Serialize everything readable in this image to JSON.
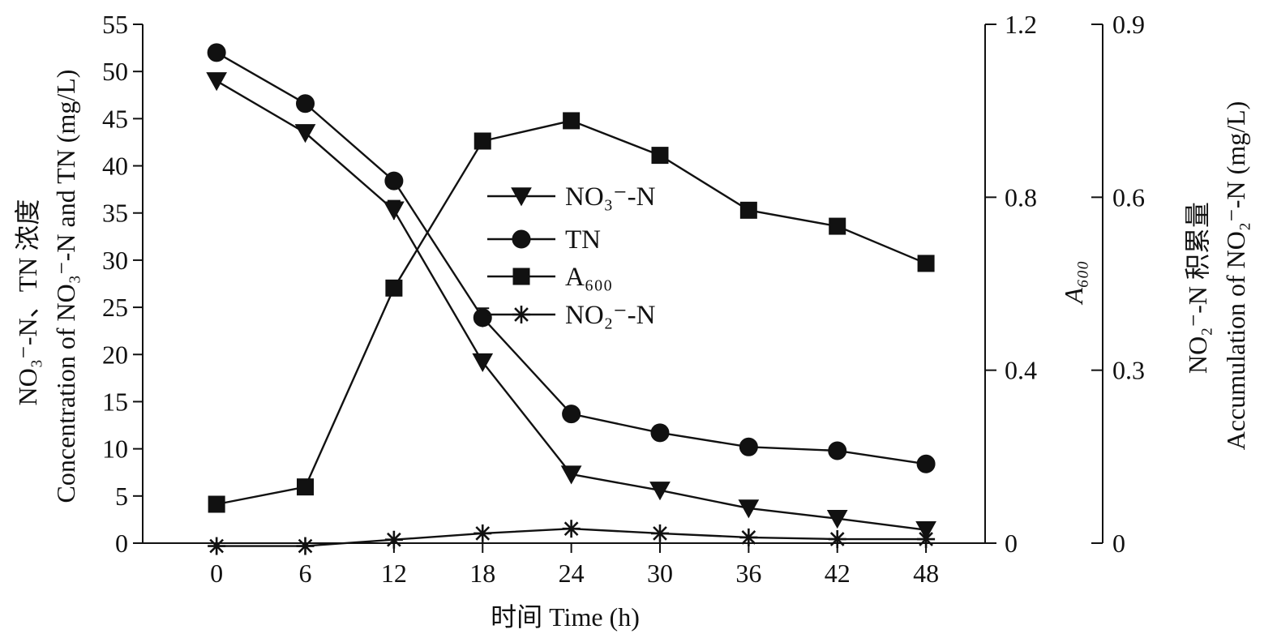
{
  "chart_data": {
    "type": "line",
    "x": [
      0,
      6,
      12,
      18,
      24,
      30,
      36,
      42,
      48
    ],
    "x_ticks": [
      "0",
      "6",
      "12",
      "18",
      "24",
      "30",
      "36",
      "42",
      "48"
    ],
    "xlabel": "时间 Time (h)",
    "xlim": [
      -5,
      52
    ],
    "left_axis": {
      "label_line1": "NO₃⁻-N、TN 浓度",
      "label_line2": "Concentration of NO₃⁻-N and TN (mg/L)",
      "ylim": [
        0,
        55
      ],
      "ticks": [
        "0",
        "5",
        "10",
        "15",
        "20",
        "25",
        "30",
        "35",
        "40",
        "45",
        "50",
        "55"
      ]
    },
    "right_axis_1": {
      "label": "A₆₀₀",
      "ylim": [
        0,
        1.2
      ],
      "ticks": [
        "0",
        "0.4",
        "0.8",
        "1.2"
      ]
    },
    "right_axis_2": {
      "label_line1": "NO₂⁻-N 积累量",
      "label_line2": "Accumulation of NO₂⁻-N (mg/L)",
      "ylim": [
        0,
        0.9
      ],
      "ticks": [
        "0",
        "0.3",
        "0.6",
        "0.9"
      ]
    },
    "series": [
      {
        "name": "NO₃⁻-N",
        "axis": "left",
        "marker": "triangle-down",
        "values": [
          49,
          43.5,
          35.3,
          19.2,
          7.3,
          5.6,
          3.7,
          2.6,
          1.4
        ],
        "errors": [
          0,
          0,
          1.0,
          0,
          0,
          0,
          0,
          0,
          0
        ]
      },
      {
        "name": "TN",
        "axis": "left",
        "marker": "circle",
        "values": [
          52,
          46.6,
          38.4,
          23.9,
          13.7,
          11.7,
          10.2,
          9.8,
          8.4
        ],
        "errors": [
          0,
          0,
          0,
          1.0,
          0,
          0,
          0,
          0,
          0
        ]
      },
      {
        "name": "A₆₀₀",
        "axis": "right1",
        "marker": "square",
        "values": [
          0.09,
          0.13,
          0.59,
          0.93,
          0.977,
          0.897,
          0.77,
          0.733,
          0.647
        ],
        "errors": [
          0,
          0,
          0,
          0,
          0,
          0,
          0,
          0,
          0
        ]
      },
      {
        "name": "NO₂⁻-N",
        "axis": "right2",
        "marker": "asterisk",
        "values": [
          -0.005,
          -0.005,
          0.006,
          0.017,
          0.025,
          0.017,
          0.01,
          0.007,
          0.007
        ],
        "errors": [
          0,
          0,
          0,
          0,
          0,
          0,
          0,
          0,
          0
        ]
      }
    ],
    "legend_position": "center"
  }
}
